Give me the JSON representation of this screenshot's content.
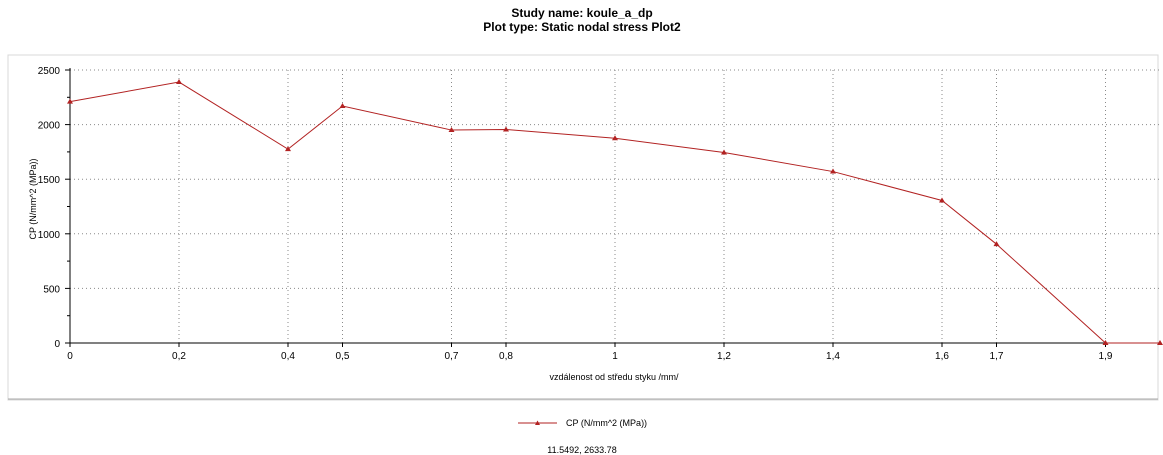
{
  "chart_data": {
    "type": "line",
    "title_lines": [
      "Study name: koule_a_dp",
      "Plot type: Static nodal stress Plot2"
    ],
    "xlabel": "vzdálenost od středu styku /mm/",
    "ylabel": "CP (N/mm^2 (MPa))",
    "x_tick_labels": [
      "0",
      "0,2",
      "0,4",
      "0,5",
      "0,7",
      "0,8",
      "1",
      "1,2",
      "1,4",
      "1,6",
      "1,7",
      "1,9"
    ],
    "y_tick_labels": [
      "0",
      "500",
      "1000",
      "1500",
      "2000",
      "2500"
    ],
    "ylim": [
      0,
      2500
    ],
    "grid": true,
    "series": [
      {
        "name": "CP (N/mm^2 (MPa))",
        "color": "#b22222",
        "marker": "triangle",
        "x": [
          0,
          0.2,
          0.4,
          0.5,
          0.7,
          0.8,
          1.0,
          1.2,
          1.4,
          1.6,
          1.7,
          1.9,
          2.0
        ],
        "y": [
          2210,
          2390,
          1775,
          2170,
          1950,
          1955,
          1875,
          1745,
          1570,
          1305,
          905,
          0,
          0
        ]
      }
    ],
    "legend_position": "bottom-center",
    "cursor_readout": "11.5492, 2633.78"
  }
}
